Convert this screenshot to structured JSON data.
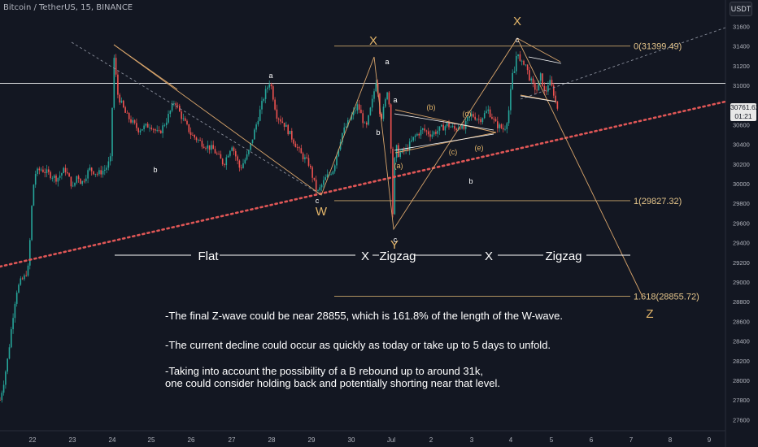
{
  "ticker": "Bitcoin / TetherUS, 15, BINANCE",
  "currency_label": "USDT",
  "price_label": {
    "price": "30761.62",
    "countdown": "01:21"
  },
  "colors": {
    "background": "#131722",
    "candle_up": "#26a69a",
    "candle_down": "#ef5350",
    "wave_line": "#d9a56b",
    "wave_label": "#ffffff",
    "big_label": "#e4b66a",
    "fib_line": "#c8a46a",
    "support_dotted": "#e05656",
    "horizontal_level": "#ffffff"
  },
  "chart_data": {
    "type": "candlestick",
    "ylim": [
      27500,
      31900
    ],
    "y_ticks": [
      27600,
      27800,
      28000,
      28200,
      28400,
      28600,
      28800,
      29000,
      29200,
      29400,
      29600,
      29800,
      30000,
      30200,
      30400,
      30600,
      31000,
      31200,
      31400,
      31600
    ],
    "x_ticks": [
      "22",
      "23",
      "24",
      "25",
      "26",
      "27",
      "28",
      "29",
      "30",
      "Jul",
      "2",
      "3",
      "4",
      "5",
      "6",
      "7",
      "8",
      "9"
    ],
    "fib_levels": [
      {
        "label": "0(31399.49)",
        "value": 31399.49
      },
      {
        "label": "1(29827.32)",
        "value": 29827.32
      },
      {
        "label": "1.618(28855.72)",
        "value": 28855.72
      }
    ],
    "horizontal_level": 31020,
    "wave_labels": {
      "big": [
        "X",
        "X",
        "W",
        "Y",
        "Z"
      ],
      "small": [
        "a",
        "b",
        "c",
        "a",
        "b",
        "c",
        "a",
        "b",
        "(a)",
        "(b)",
        "(c)",
        "(d)",
        "(e)",
        "c"
      ]
    },
    "structure_labels": [
      "Flat",
      "X",
      "Zigzag",
      "X",
      "Zigzag"
    ]
  },
  "notes": [
    "-The final Z-wave could be near 28855, which is 161.8% of the length of the W-wave.",
    "-The current decline could occur as quickly as today or take up to 5 days to unfold.",
    "-Taking into account the possibility of a B rebound up to around 31k,\none could consider holding back and potentially shorting near that level."
  ]
}
